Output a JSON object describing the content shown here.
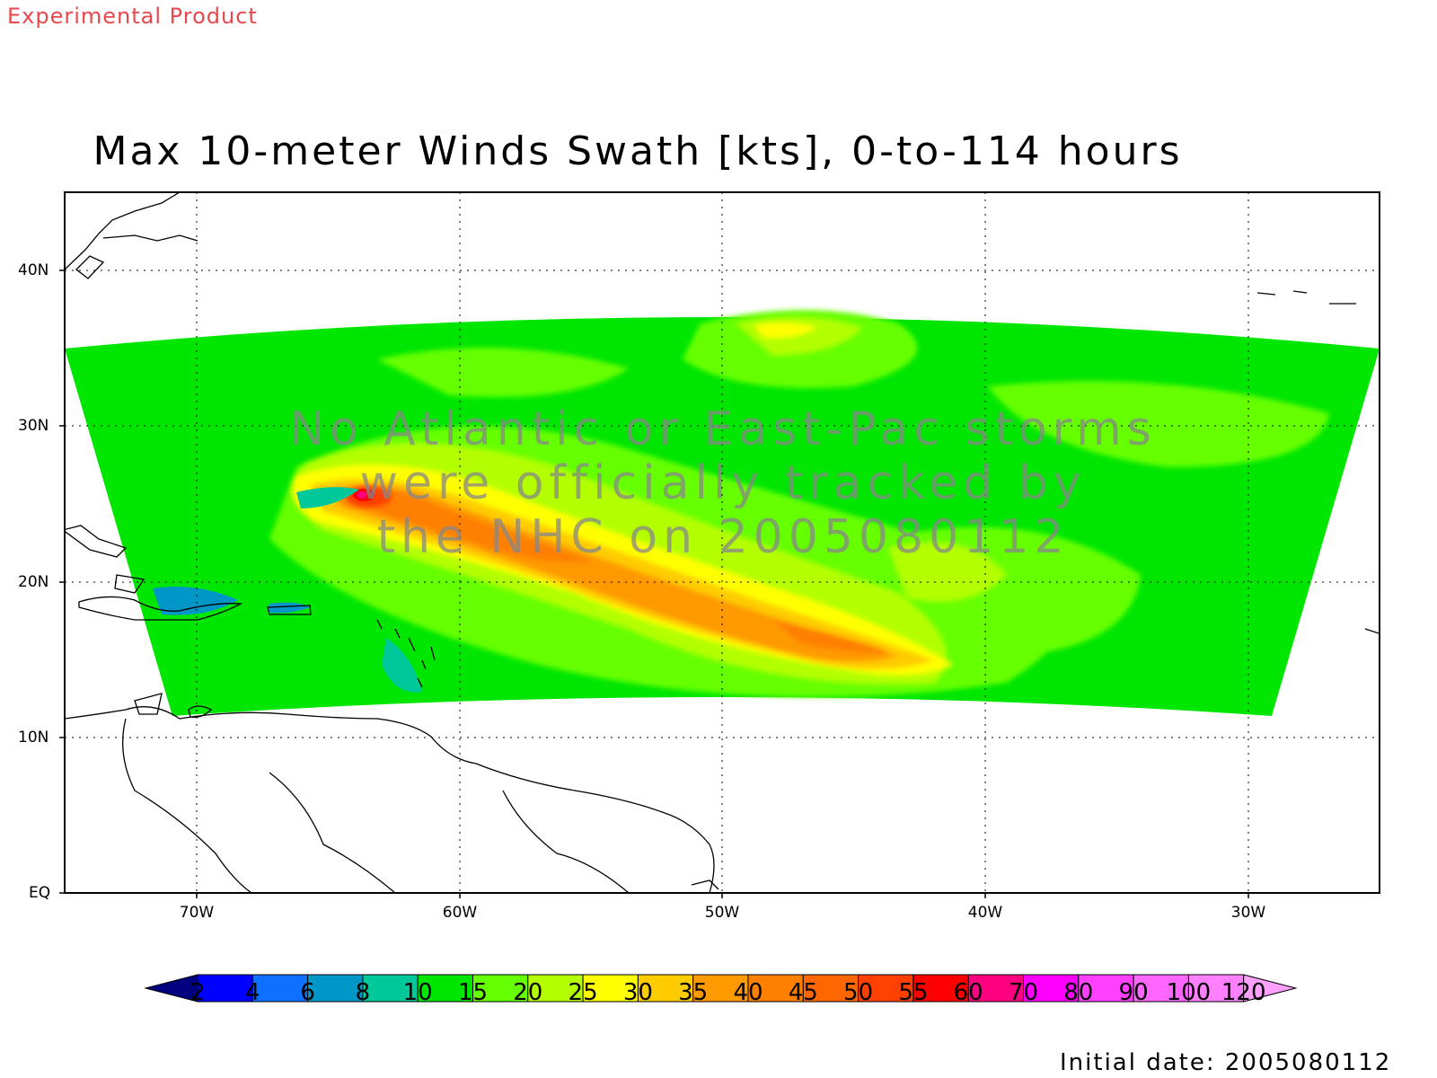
{
  "header": {
    "experimental": "Experimental Product"
  },
  "chart_data": {
    "type": "heatmap",
    "title": "Max 10-meter Winds Swath [kts], 0-to-114 hours",
    "lon_range": [
      -75,
      -25
    ],
    "lat_range": [
      0,
      45
    ],
    "y_ticks": [
      "EQ",
      "10N",
      "20N",
      "30N",
      "40N"
    ],
    "x_ticks": [
      "70W",
      "60W",
      "50W",
      "40W",
      "30W"
    ],
    "grid": true,
    "colorbar": {
      "levels": [
        "2",
        "4",
        "6",
        "8",
        "10",
        "15",
        "20",
        "25",
        "30",
        "35",
        "40",
        "45",
        "50",
        "55",
        "60",
        "70",
        "80",
        "90",
        "100",
        "120"
      ],
      "colors": [
        "#000080",
        "#0000ff",
        "#0f6fff",
        "#0096c8",
        "#00c89a",
        "#00e600",
        "#66ff00",
        "#b3ff00",
        "#ffff00",
        "#ffcc00",
        "#ff9900",
        "#ff7f00",
        "#ff6600",
        "#ff4000",
        "#ff0000",
        "#ff0080",
        "#ff00ff",
        "#ff40ff",
        "#ff66ff",
        "#ff80ff",
        "#ffa0ff"
      ]
    },
    "swath_peak_kts": 60
  },
  "notice": {
    "line1": "No Atlantic or East-Pac storms",
    "line2": "were officially tracked by",
    "line3": "the NHC on 2005080112"
  },
  "footer": {
    "initial_date": "Initial date: 2005080112"
  }
}
